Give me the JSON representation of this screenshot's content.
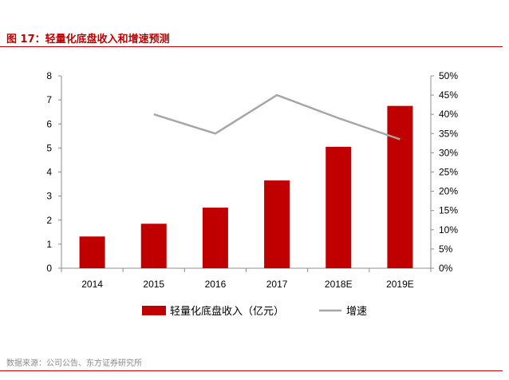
{
  "header": {
    "figure_label": "图 17：",
    "figure_title": "轻量化底盘收入和增速预测"
  },
  "source": "数据来源：公司公告、东方证券研究所",
  "colors": {
    "bar": "#c00000",
    "line": "#a6a6a6",
    "title": "#c00000",
    "axis": "#8c8c8c"
  },
  "chart_data": {
    "type": "bar",
    "title": "轻量化底盘收入和增速预测",
    "categories": [
      "2014",
      "2015",
      "2016",
      "2017",
      "2018E",
      "2019E"
    ],
    "series": [
      {
        "name": "轻量化底盘收入（亿元）",
        "type": "bar",
        "axis": "left",
        "values": [
          1.32,
          1.85,
          2.52,
          3.65,
          5.05,
          6.75
        ]
      },
      {
        "name": "增速",
        "type": "line",
        "axis": "right",
        "values": [
          null,
          0.4,
          0.35,
          0.45,
          0.39,
          0.335
        ]
      }
    ],
    "left_axis": {
      "min": 0,
      "max": 8,
      "ticks": [
        "0",
        "1",
        "2",
        "3",
        "4",
        "5",
        "6",
        "7",
        "8"
      ]
    },
    "right_axis": {
      "min": 0,
      "max": 0.5,
      "ticks": [
        "0%",
        "5%",
        "10%",
        "15%",
        "20%",
        "25%",
        "30%",
        "35%",
        "40%",
        "45%",
        "50%"
      ]
    },
    "grid": false,
    "legend_position": "bottom"
  }
}
